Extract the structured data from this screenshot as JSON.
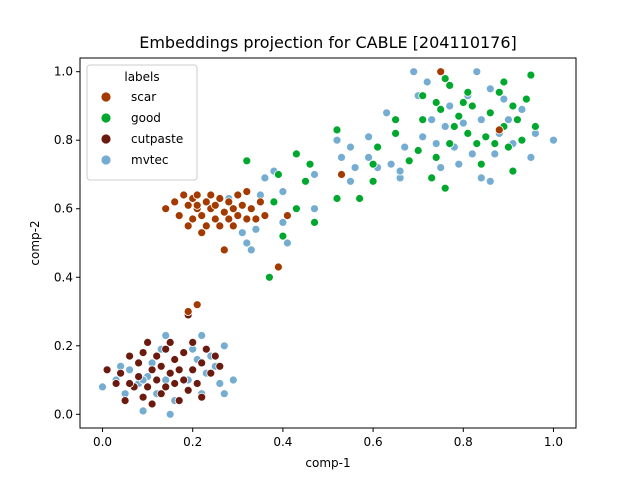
{
  "chart_data": {
    "type": "scatter",
    "title": "Embeddings projection for CABLE [204110176]",
    "xlabel": "comp-1",
    "ylabel": "comp-2",
    "xlim": [
      -0.05,
      1.05
    ],
    "ylim": [
      -0.04,
      1.04
    ],
    "x_ticks": [
      0.0,
      0.2,
      0.4,
      0.6,
      0.8,
      1.0
    ],
    "y_ticks": [
      0.0,
      0.2,
      0.4,
      0.6,
      0.8,
      1.0
    ],
    "x_tick_labels": [
      "0.0",
      "0.2",
      "0.4",
      "0.6",
      "0.8",
      "1.0"
    ],
    "y_tick_labels": [
      "0.0",
      "0.2",
      "0.4",
      "0.6",
      "0.8",
      "1.0"
    ],
    "grid": false,
    "legend": {
      "title": "labels",
      "position": "top-left"
    },
    "series": [
      {
        "name": "mvtec",
        "color": "#74add1",
        "points": [
          [
            0.0,
            0.08
          ],
          [
            0.03,
            0.1
          ],
          [
            0.04,
            0.14
          ],
          [
            0.05,
            0.06
          ],
          [
            0.06,
            0.13
          ],
          [
            0.08,
            0.09
          ],
          [
            0.09,
            0.01
          ],
          [
            0.1,
            0.11
          ],
          [
            0.11,
            0.15
          ],
          [
            0.12,
            0.06
          ],
          [
            0.13,
            0.19
          ],
          [
            0.14,
            0.1
          ],
          [
            0.14,
            0.23
          ],
          [
            0.15,
            0.0
          ],
          [
            0.16,
            0.04
          ],
          [
            0.17,
            0.13
          ],
          [
            0.18,
            0.18
          ],
          [
            0.19,
            0.1
          ],
          [
            0.2,
            0.19
          ],
          [
            0.21,
            0.16
          ],
          [
            0.22,
            0.23
          ],
          [
            0.23,
            0.12
          ],
          [
            0.24,
            0.17
          ],
          [
            0.25,
            0.14
          ],
          [
            0.26,
            0.09
          ],
          [
            0.27,
            0.2
          ],
          [
            0.27,
            0.06
          ],
          [
            0.29,
            0.1
          ],
          [
            0.22,
            0.06
          ],
          [
            0.09,
            0.1
          ],
          [
            0.16,
            0.62
          ],
          [
            0.28,
            0.63
          ],
          [
            0.31,
            0.53
          ],
          [
            0.32,
            0.5
          ],
          [
            0.33,
            0.48
          ],
          [
            0.34,
            0.54
          ],
          [
            0.35,
            0.64
          ],
          [
            0.36,
            0.69
          ],
          [
            0.38,
            0.71
          ],
          [
            0.4,
            0.65
          ],
          [
            0.4,
            0.56
          ],
          [
            0.41,
            0.5
          ],
          [
            0.39,
            0.43
          ],
          [
            0.47,
            0.6
          ],
          [
            0.47,
            0.7
          ],
          [
            0.52,
            0.8
          ],
          [
            0.53,
            0.75
          ],
          [
            0.55,
            0.68
          ],
          [
            0.55,
            0.78
          ],
          [
            0.56,
            0.72
          ],
          [
            0.59,
            0.75
          ],
          [
            0.59,
            0.81
          ],
          [
            0.61,
            0.72
          ],
          [
            0.63,
            0.88
          ],
          [
            0.64,
            0.73
          ],
          [
            0.66,
            0.69
          ],
          [
            0.66,
            0.71
          ],
          [
            0.67,
            0.78
          ],
          [
            0.69,
            1.0
          ],
          [
            0.7,
            0.93
          ],
          [
            0.71,
            0.81
          ],
          [
            0.72,
            0.97
          ],
          [
            0.73,
            0.86
          ],
          [
            0.74,
            0.79
          ],
          [
            0.75,
            0.72
          ],
          [
            0.76,
            0.84
          ],
          [
            0.77,
            0.9
          ],
          [
            0.78,
            0.78
          ],
          [
            0.79,
            0.73
          ],
          [
            0.8,
            0.85
          ],
          [
            0.81,
            0.93
          ],
          [
            0.82,
            0.76
          ],
          [
            0.83,
            1.0
          ],
          [
            0.84,
            0.69
          ],
          [
            0.84,
            0.86
          ],
          [
            0.86,
            0.68
          ],
          [
            0.86,
            0.95
          ],
          [
            0.87,
            0.76
          ],
          [
            0.88,
            0.82
          ],
          [
            0.89,
            0.92
          ],
          [
            0.9,
            0.86
          ],
          [
            0.91,
            0.79
          ],
          [
            0.93,
            0.89
          ],
          [
            0.95,
            0.75
          ],
          [
            0.96,
            0.82
          ],
          [
            1.0,
            0.8
          ]
        ]
      },
      {
        "name": "good",
        "color": "#00a82d",
        "points": [
          [
            0.32,
            0.74
          ],
          [
            0.37,
            0.4
          ],
          [
            0.38,
            0.62
          ],
          [
            0.39,
            0.7
          ],
          [
            0.4,
            0.52
          ],
          [
            0.43,
            0.6
          ],
          [
            0.43,
            0.76
          ],
          [
            0.45,
            0.68
          ],
          [
            0.46,
            0.73
          ],
          [
            0.47,
            0.56
          ],
          [
            0.52,
            0.63
          ],
          [
            0.52,
            0.83
          ],
          [
            0.57,
            0.63
          ],
          [
            0.6,
            0.73
          ],
          [
            0.6,
            0.68
          ],
          [
            0.61,
            0.78
          ],
          [
            0.65,
            0.82
          ],
          [
            0.65,
            0.86
          ],
          [
            0.68,
            0.74
          ],
          [
            0.7,
            0.77
          ],
          [
            0.71,
            0.86
          ],
          [
            0.71,
            0.93
          ],
          [
            0.73,
            0.69
          ],
          [
            0.74,
            0.75
          ],
          [
            0.75,
            0.89
          ],
          [
            0.76,
            0.66
          ],
          [
            0.76,
            0.98
          ],
          [
            0.77,
            0.79
          ],
          [
            0.78,
            0.84
          ],
          [
            0.79,
            0.87
          ],
          [
            0.8,
            0.91
          ],
          [
            0.81,
            0.94
          ],
          [
            0.81,
            0.82
          ],
          [
            0.82,
            0.9
          ],
          [
            0.83,
            0.79
          ],
          [
            0.84,
            0.73
          ],
          [
            0.85,
            0.81
          ],
          [
            0.86,
            0.88
          ],
          [
            0.87,
            0.79
          ],
          [
            0.88,
            0.94
          ],
          [
            0.89,
            0.97
          ],
          [
            0.89,
            0.84
          ],
          [
            0.9,
            0.78
          ],
          [
            0.91,
            0.9
          ],
          [
            0.91,
            0.71
          ],
          [
            0.92,
            0.86
          ],
          [
            0.93,
            0.8
          ],
          [
            0.94,
            0.92
          ],
          [
            0.95,
            0.99
          ],
          [
            0.96,
            0.84
          ],
          [
            0.77,
            0.96
          ],
          [
            0.74,
            0.91
          ]
        ]
      },
      {
        "name": "cutpaste",
        "color": "#6b1a0f",
        "points": [
          [
            0.01,
            0.13
          ],
          [
            0.03,
            0.09
          ],
          [
            0.04,
            0.12
          ],
          [
            0.05,
            0.04
          ],
          [
            0.06,
            0.17
          ],
          [
            0.07,
            0.08
          ],
          [
            0.08,
            0.15
          ],
          [
            0.08,
            0.11
          ],
          [
            0.09,
            0.05
          ],
          [
            0.1,
            0.21
          ],
          [
            0.1,
            0.08
          ],
          [
            0.11,
            0.13
          ],
          [
            0.11,
            0.03
          ],
          [
            0.12,
            0.17
          ],
          [
            0.12,
            0.1
          ],
          [
            0.13,
            0.06
          ],
          [
            0.13,
            0.14
          ],
          [
            0.14,
            0.19
          ],
          [
            0.14,
            0.08
          ],
          [
            0.15,
            0.12
          ],
          [
            0.15,
            0.21
          ],
          [
            0.16,
            0.16
          ],
          [
            0.16,
            0.09
          ],
          [
            0.17,
            0.04
          ],
          [
            0.17,
            0.13
          ],
          [
            0.18,
            0.18
          ],
          [
            0.18,
            0.1
          ],
          [
            0.19,
            0.07
          ],
          [
            0.19,
            0.29
          ],
          [
            0.2,
            0.21
          ],
          [
            0.2,
            0.13
          ],
          [
            0.21,
            0.09
          ],
          [
            0.22,
            0.15
          ],
          [
            0.22,
            0.05
          ],
          [
            0.23,
            0.19
          ],
          [
            0.24,
            0.12
          ],
          [
            0.25,
            0.17
          ],
          [
            0.26,
            0.14
          ],
          [
            0.06,
            0.09
          ],
          [
            0.09,
            0.18
          ]
        ]
      },
      {
        "name": "scar",
        "color": "#a33a00",
        "points": [
          [
            0.19,
            0.3
          ],
          [
            0.21,
            0.32
          ],
          [
            0.14,
            0.6
          ],
          [
            0.16,
            0.62
          ],
          [
            0.17,
            0.58
          ],
          [
            0.18,
            0.64
          ],
          [
            0.19,
            0.61
          ],
          [
            0.19,
            0.55
          ],
          [
            0.2,
            0.63
          ],
          [
            0.2,
            0.57
          ],
          [
            0.21,
            0.6
          ],
          [
            0.21,
            0.64
          ],
          [
            0.22,
            0.53
          ],
          [
            0.22,
            0.58
          ],
          [
            0.23,
            0.62
          ],
          [
            0.23,
            0.55
          ],
          [
            0.24,
            0.6
          ],
          [
            0.24,
            0.64
          ],
          [
            0.25,
            0.57
          ],
          [
            0.25,
            0.61
          ],
          [
            0.26,
            0.55
          ],
          [
            0.26,
            0.63
          ],
          [
            0.27,
            0.59
          ],
          [
            0.27,
            0.48
          ],
          [
            0.28,
            0.57
          ],
          [
            0.28,
            0.62
          ],
          [
            0.29,
            0.6
          ],
          [
            0.29,
            0.55
          ],
          [
            0.3,
            0.64
          ],
          [
            0.3,
            0.58
          ],
          [
            0.31,
            0.61
          ],
          [
            0.32,
            0.57
          ],
          [
            0.32,
            0.65
          ],
          [
            0.33,
            0.6
          ],
          [
            0.34,
            0.57
          ],
          [
            0.35,
            0.62
          ],
          [
            0.36,
            0.58
          ],
          [
            0.21,
            0.61
          ],
          [
            0.39,
            0.43
          ],
          [
            0.41,
            0.58
          ],
          [
            0.53,
            0.7
          ],
          [
            0.75,
            1.0
          ],
          [
            0.88,
            0.83
          ]
        ]
      }
    ],
    "legend_order": [
      "scar",
      "good",
      "cutpaste",
      "mvtec"
    ]
  }
}
